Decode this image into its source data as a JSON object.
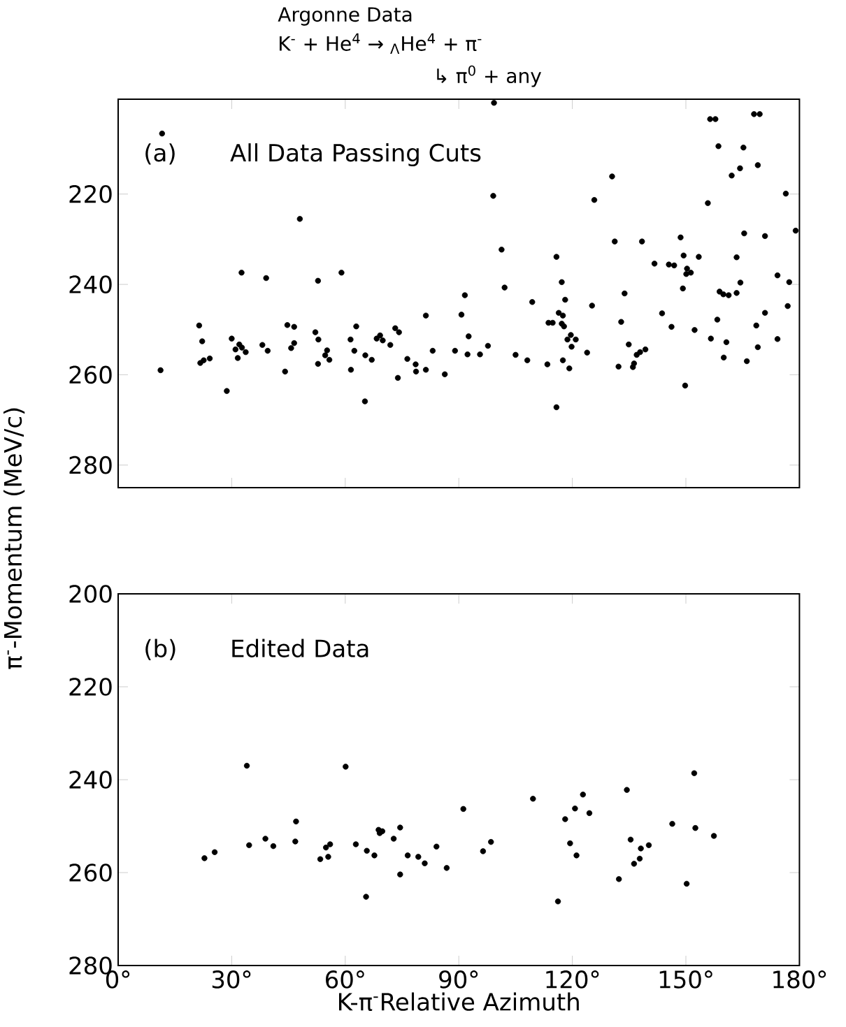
{
  "chart_data": [
    {
      "type": "scatter",
      "title": "Argonne Data",
      "subtitle": "K$^{-}$ + He$^{4}$ → $_{Λ}$He$^{4}$ + π$^{-}$",
      "annotations": [
        "↳ π$^{0}$ + any",
        "(a)",
        "All Data Passing Cuts"
      ],
      "color": "#000000",
      "marker": "circle",
      "tick_labels": "y",
      "xlim": [
        0,
        180
      ],
      "ylim": [
        285,
        199
      ],
      "xticks": [
        {
          "value": 0,
          "label": null
        },
        {
          "value": 30,
          "label": null
        },
        {
          "value": 60,
          "label": null
        },
        {
          "value": 90,
          "label": null
        },
        {
          "value": 120,
          "label": null
        },
        {
          "value": 150,
          "label": null
        },
        {
          "value": 180,
          "label": null
        }
      ],
      "yticks": [
        220,
        240,
        260,
        280
      ],
      "x": [
        11.6,
        11.2,
        21.4,
        22.2,
        21.7,
        22.6,
        24.2,
        28.7,
        30.0,
        31.0,
        31.6,
        32.0,
        32.7,
        33.7,
        32.6,
        38.1,
        39.5,
        39.1,
        44.1,
        44.7,
        46.5,
        45.7,
        46.5,
        48.0,
        52.1,
        52.9,
        52.8,
        52.8,
        54.7,
        55.2,
        55.8,
        59.0,
        61.4,
        62.9,
        61.5,
        62.4,
        65.2,
        65.3,
        67.0,
        68.3,
        69.2,
        69.9,
        71.9,
        73.2,
        74.2,
        73.9,
        76.4,
        78.6,
        78.7,
        81.3,
        81.3,
        83.1,
        86.3,
        89.0,
        90.7,
        91.6,
        92.6,
        92.3,
        95.6,
        97.7,
        99.3,
        99.1,
        101.3,
        102.1,
        105.0,
        108.1,
        109.4,
        113.4,
        113.7,
        114.8,
        117.2,
        115.8,
        117.2,
        115.8,
        118.1,
        116.4,
        117.5,
        119.8,
        117.8,
        118.7,
        119.6,
        120.9,
        117.5,
        119.2,
        123.9,
        125.8,
        125.2,
        130.5,
        131.2,
        132.2,
        132.9,
        133.8,
        134.9,
        136.0,
        136.3,
        137.0,
        137.9,
        139.3,
        138.4,
        141.7,
        143.7,
        146.2,
        145.5,
        146.9,
        148.6,
        149.2,
        149.8,
        149.4,
        150.3,
        150.1,
        151.3,
        153.4,
        152.3,
        155.8,
        156.4,
        157.8,
        156.6,
        158.3,
        158.6,
        158.9,
        159.9,
        160.7,
        160.0,
        161.3,
        162.1,
        163.4,
        164.3,
        165.2,
        163.4,
        164.4,
        166.1,
        165.4,
        168.0,
        169.5,
        169.0,
        168.6,
        169.0,
        170.9,
        170.9,
        174.2,
        174.2,
        176.4,
        177.3,
        176.9,
        179.0
      ],
      "values": [
        206.6,
        259.0,
        249.1,
        252.6,
        257.4,
        256.8,
        256.4,
        263.6,
        252.0,
        254.4,
        256.3,
        253.3,
        254.0,
        255.0,
        237.4,
        253.4,
        254.7,
        238.6,
        259.3,
        249.0,
        249.4,
        254.1,
        253.0,
        225.5,
        250.6,
        252.2,
        257.6,
        239.2,
        255.7,
        254.6,
        256.7,
        237.4,
        252.2,
        249.3,
        258.9,
        254.7,
        265.9,
        255.7,
        256.7,
        252.0,
        251.3,
        252.4,
        253.4,
        249.7,
        250.6,
        260.7,
        256.5,
        257.7,
        259.3,
        258.9,
        246.9,
        254.7,
        259.9,
        254.7,
        246.7,
        242.4,
        251.5,
        255.5,
        255.5,
        253.6,
        199.8,
        220.4,
        232.3,
        240.7,
        255.6,
        256.8,
        243.9,
        257.7,
        248.5,
        248.5,
        248.7,
        233.9,
        239.5,
        267.2,
        243.4,
        246.3,
        246.9,
        253.8,
        249.3,
        252.2,
        251.2,
        252.2,
        256.8,
        258.6,
        255.1,
        221.3,
        244.7,
        216.1,
        230.5,
        258.2,
        248.3,
        242.0,
        253.3,
        258.3,
        257.5,
        255.6,
        255.0,
        254.4,
        230.5,
        235.4,
        246.4,
        249.4,
        235.6,
        235.8,
        229.6,
        240.9,
        262.4,
        233.6,
        236.5,
        237.7,
        237.4,
        233.9,
        250.1,
        222.0,
        203.4,
        203.4,
        252.0,
        247.8,
        209.4,
        241.6,
        242.2,
        252.8,
        256.2,
        242.4,
        215.9,
        241.9,
        214.3,
        209.7,
        234.0,
        239.6,
        257.0,
        228.7,
        202.3,
        202.3,
        213.6,
        249.1,
        253.9,
        246.3,
        229.3,
        238.0,
        252.1,
        219.9,
        239.5,
        244.8,
        228.1
      ]
    },
    {
      "type": "scatter",
      "xlabel": "K-π$^{-}$Relative Azimuth",
      "ylabel": "π$^{-}$-Momentum (MeV/c)",
      "annotations": [
        "(b)",
        "Edited Data"
      ],
      "color": "#000000",
      "marker": "circle",
      "xlim": [
        0,
        180
      ],
      "ylim": [
        280,
        200
      ],
      "xticks": [
        {
          "value": 0,
          "label": "0°"
        },
        {
          "value": 30,
          "label": "30°"
        },
        {
          "value": 60,
          "label": "60°"
        },
        {
          "value": 90,
          "label": "90°"
        },
        {
          "value": 120,
          "label": "120°"
        },
        {
          "value": 150,
          "label": "150°"
        },
        {
          "value": 180,
          "label": "180°"
        }
      ],
      "yticks": [
        200,
        220,
        240,
        260,
        280
      ],
      "x": [
        22.8,
        25.5,
        34.0,
        34.6,
        38.9,
        41.0,
        47.0,
        46.8,
        53.4,
        54.9,
        55.5,
        56.0,
        60.1,
        62.8,
        65.7,
        65.5,
        67.7,
        68.8,
        69.1,
        69.8,
        72.8,
        74.5,
        74.5,
        76.5,
        79.3,
        81.0,
        84.1,
        86.8,
        91.2,
        96.4,
        98.5,
        109.6,
        116.2,
        118.1,
        119.4,
        120.7,
        121.1,
        122.8,
        124.5,
        132.3,
        134.4,
        135.4,
        136.3,
        137.8,
        138.1,
        140.2,
        146.4,
        150.2,
        152.2,
        152.5,
        157.4
      ],
      "values": [
        256.9,
        255.6,
        237.0,
        254.1,
        252.7,
        254.3,
        249.0,
        253.3,
        257.1,
        254.6,
        256.6,
        253.9,
        237.2,
        253.9,
        255.3,
        265.2,
        256.3,
        250.8,
        251.5,
        251.1,
        252.7,
        250.3,
        260.4,
        256.3,
        256.6,
        258.0,
        254.4,
        259.0,
        246.3,
        255.4,
        253.4,
        244.1,
        266.2,
        248.5,
        253.7,
        246.2,
        256.3,
        243.2,
        247.2,
        261.4,
        242.2,
        252.9,
        258.1,
        257.0,
        254.8,
        254.1,
        249.5,
        262.4,
        238.6,
        250.4,
        252.1
      ]
    }
  ]
}
